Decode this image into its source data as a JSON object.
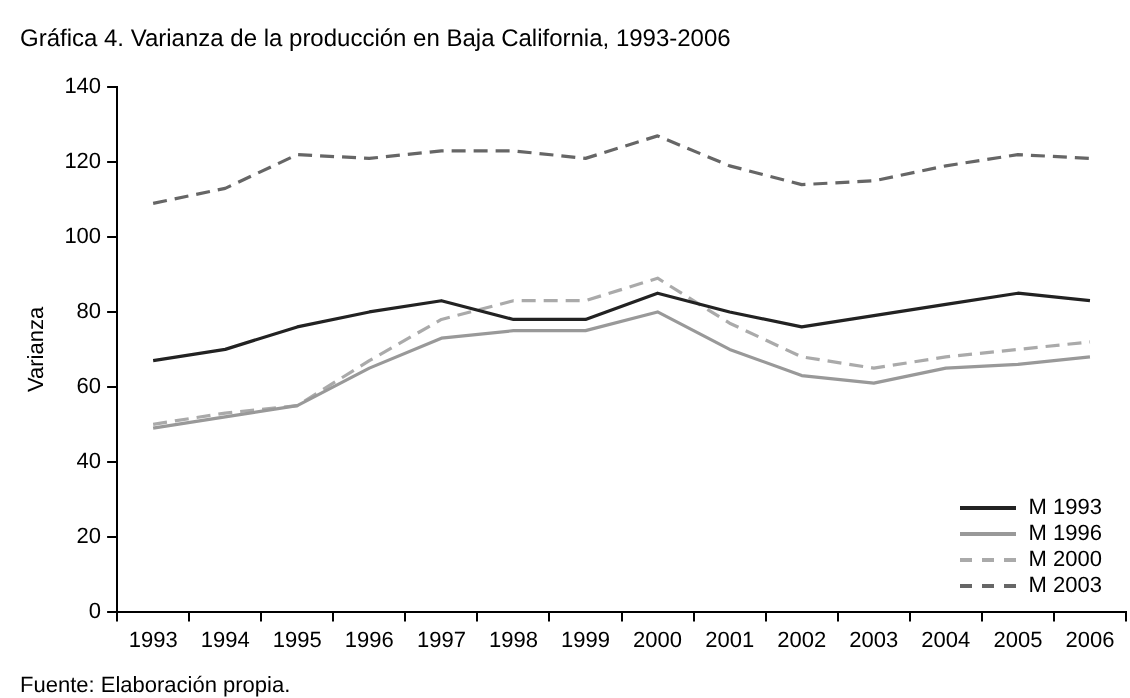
{
  "chart_data": {
    "type": "line",
    "title": "Gráfica 4. Varianza de la producción en Baja California, 1993-2006",
    "ylabel": "Varianza",
    "annotations": [
      "Fuente: Elaboración propia."
    ],
    "categories": [
      "1993",
      "1994",
      "1995",
      "1996",
      "1997",
      "1998",
      "1999",
      "2000",
      "2001",
      "2002",
      "2003",
      "2004",
      "2005",
      "2006"
    ],
    "ylim": [
      0,
      140
    ],
    "yticks": [
      0,
      20,
      40,
      60,
      80,
      100,
      120,
      140
    ],
    "grid": false,
    "legend": "bottom right",
    "marker": "none",
    "series": [
      {
        "name": "M 1993",
        "color": "#222222",
        "line_style": "solid",
        "values": [
          67,
          70,
          76,
          80,
          83,
          78,
          78,
          85,
          80,
          76,
          79,
          82,
          85,
          83
        ]
      },
      {
        "name": "M 1996",
        "color": "#999999",
        "line_style": "solid",
        "values": [
          49,
          52,
          55,
          65,
          73,
          75,
          75,
          80,
          70,
          63,
          61,
          65,
          66,
          68
        ]
      },
      {
        "name": "M 2000",
        "color": "#aaaaaa",
        "line_style": "dashed",
        "values": [
          50,
          53,
          55,
          67,
          78,
          83,
          83,
          89,
          77,
          68,
          65,
          68,
          70,
          72
        ]
      },
      {
        "name": "M 2003",
        "color": "#666666",
        "line_style": "dashed",
        "values": [
          109,
          113,
          122,
          121,
          123,
          123,
          121,
          127,
          119,
          114,
          115,
          119,
          122,
          121
        ]
      }
    ]
  }
}
